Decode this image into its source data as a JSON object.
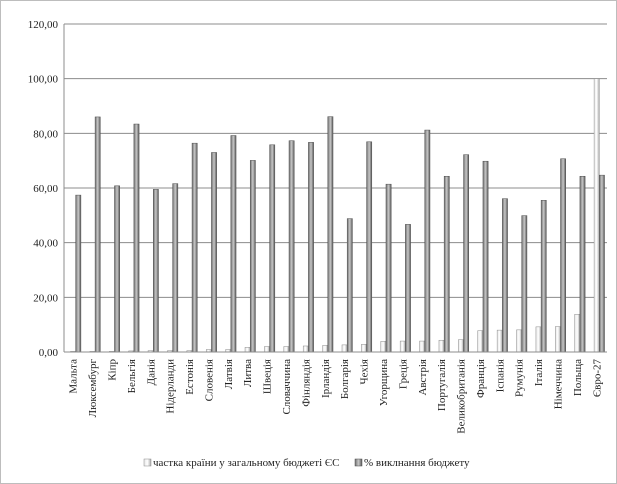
{
  "chart_data": {
    "type": "bar",
    "title": "",
    "xlabel": "",
    "ylabel": "",
    "ylim": [
      0,
      120
    ],
    "ytick_step": 20,
    "ytick_labels": [
      "0,00",
      "20,00",
      "40,00",
      "60,00",
      "80,00",
      "100,00",
      "120,00"
    ],
    "gridlines": true,
    "legend_position": "bottom",
    "categories": [
      "Мальта",
      "Люксембург",
      "Кіпр",
      "Бельгія",
      "Данія",
      "Нідерланди",
      "Естонія",
      "Словенія",
      "Латвія",
      "Литва",
      "Швеція",
      "Словаччина",
      "Фінляндія",
      "Ірландія",
      "Болгарія",
      "Чехія",
      "Угорщина",
      "Греція",
      "Австрія",
      "Португалія",
      "Великобританія",
      "Франція",
      "Іспанія",
      "Румунія",
      "Італія",
      "Німеччина",
      "Польща",
      "Євро-27"
    ],
    "series": [
      {
        "name": "частка країни у загальному бюджеті ЄС",
        "color": "#bdbdbd",
        "values": [
          0.1,
          0.2,
          0.2,
          0.4,
          0.5,
          0.5,
          0.5,
          0.9,
          0.9,
          1.7,
          2.0,
          2.0,
          2.2,
          2.4,
          2.6,
          2.8,
          3.9,
          4.0,
          4.0,
          4.3,
          4.5,
          7.8,
          8.0,
          8.1,
          9.2,
          9.3,
          13.8,
          100.0
        ]
      },
      {
        "name": "% виклнання бюджету",
        "color": "#7f7f7f",
        "values": [
          57.4,
          86.0,
          60.8,
          83.4,
          59.5,
          61.6,
          76.4,
          73.0,
          79.2,
          70.1,
          75.8,
          77.3,
          76.7,
          86.1,
          48.8,
          76.9,
          61.4,
          46.7,
          81.2,
          64.3,
          72.2,
          69.8,
          56.1,
          49.9,
          55.5,
          70.7,
          64.3,
          64.7
        ]
      }
    ]
  }
}
